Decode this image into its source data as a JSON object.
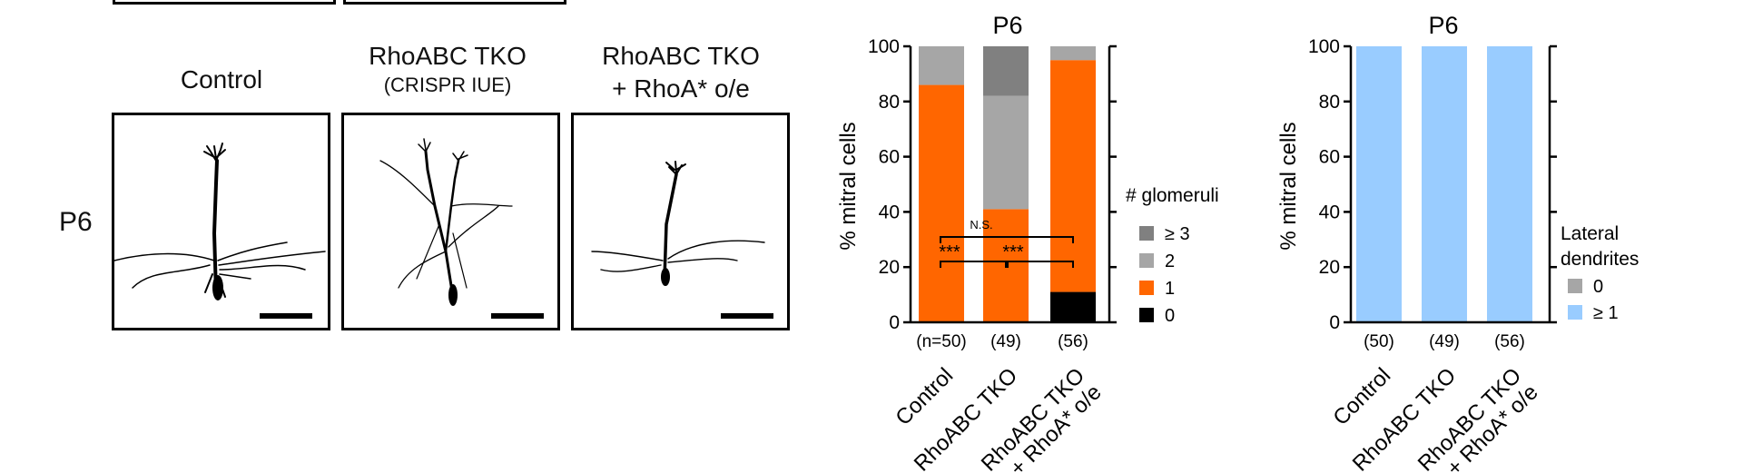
{
  "figure": {
    "panels_header": {
      "columns": [
        {
          "title": "Control",
          "subtitle": ""
        },
        {
          "title": "RhoABC TKO",
          "subtitle": "(CRISPR IUE)"
        },
        {
          "title": "RhoABC TKO",
          "subtitle": "+ RhoA* o/e"
        }
      ],
      "row_label": "P6"
    },
    "colors": {
      "ge3": "#808080",
      "two": "#a6a6a6",
      "one": "#ff6600",
      "zero": "#000000",
      "lat_zero": "#a6a6a6",
      "lat_ge1": "#99ccff"
    }
  },
  "chart_data": [
    {
      "type": "bar",
      "stacked": true,
      "title": "P6",
      "ylabel": "% mitral cells",
      "ylim": [
        0,
        100
      ],
      "yticks": [
        "0",
        "20",
        "40",
        "60",
        "80",
        "100"
      ],
      "categories": [
        "Control",
        "RhoABC TKO",
        "RhoABC TKO\n+ RhoA* o/e"
      ],
      "n_labels": [
        "(n=50)",
        "(49)",
        "(56)"
      ],
      "legend_title": "# glomeruli",
      "series": [
        {
          "name": "0",
          "color": "#000000",
          "values": [
            0,
            0,
            11
          ]
        },
        {
          "name": "1",
          "color": "#ff6600",
          "values": [
            86,
            41,
            84
          ]
        },
        {
          "name": "2",
          "color": "#a6a6a6",
          "values": [
            14,
            41,
            5
          ]
        },
        {
          "name": "≥ 3",
          "color": "#808080",
          "values": [
            0,
            18,
            0
          ]
        }
      ],
      "annotations": {
        "ns": "N.S.",
        "sig1": "***",
        "sig2": "***"
      }
    },
    {
      "type": "bar",
      "stacked": true,
      "title": "P6",
      "ylabel": "% mitral cells",
      "ylim": [
        0,
        100
      ],
      "yticks": [
        "0",
        "20",
        "40",
        "60",
        "80",
        "100"
      ],
      "categories": [
        "Control",
        "RhoABC TKO",
        "RhoABC TKO\n+ RhoA* o/e"
      ],
      "n_labels": [
        "(50)",
        "(49)",
        "(56)"
      ],
      "legend_title": "Lateral dendrites",
      "series": [
        {
          "name": "0",
          "color": "#a6a6a6",
          "values": [
            0,
            0,
            0
          ]
        },
        {
          "name": "≥ 1",
          "color": "#99ccff",
          "values": [
            100,
            100,
            100
          ]
        }
      ]
    }
  ]
}
